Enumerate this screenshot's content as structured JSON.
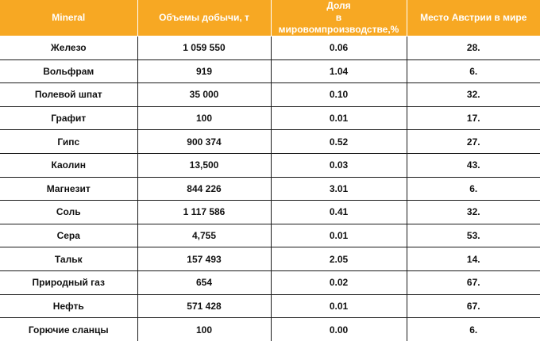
{
  "table": {
    "headers": [
      "Mineral",
      "Объемы добычи, т",
      "Доля\nв мировомпроизводстве,%",
      "Место Австрии в мире"
    ],
    "rows": [
      [
        "Железо",
        "1 059 550",
        "0.06",
        "28."
      ],
      [
        "Вольфрам",
        "919",
        "1.04",
        "6."
      ],
      [
        "Полевой шпат",
        "35 000",
        "0.10",
        "32."
      ],
      [
        "Графит",
        "100",
        "0.01",
        "17."
      ],
      [
        "Гипс",
        "900 374",
        "0.52",
        "27."
      ],
      [
        "Каолин",
        "13,500",
        "0.03",
        "43."
      ],
      [
        "Магнезит",
        "844 226",
        "3.01",
        "6."
      ],
      [
        "Соль",
        "1 117 586",
        "0.41",
        "32."
      ],
      [
        "Сера",
        "4,755",
        "0.01",
        "53."
      ],
      [
        "Тальк",
        "157 493",
        "2.05",
        "14."
      ],
      [
        "Природный газ",
        "654",
        "0.02",
        "67."
      ],
      [
        "Нефть",
        "571 428",
        "0.01",
        "67."
      ],
      [
        "Горючие сланцы",
        "100",
        "0.00",
        "6."
      ]
    ]
  },
  "colors": {
    "header_background": "#f7a823",
    "header_text": "#ffffff",
    "grid_lines": "#1a1a1a"
  }
}
